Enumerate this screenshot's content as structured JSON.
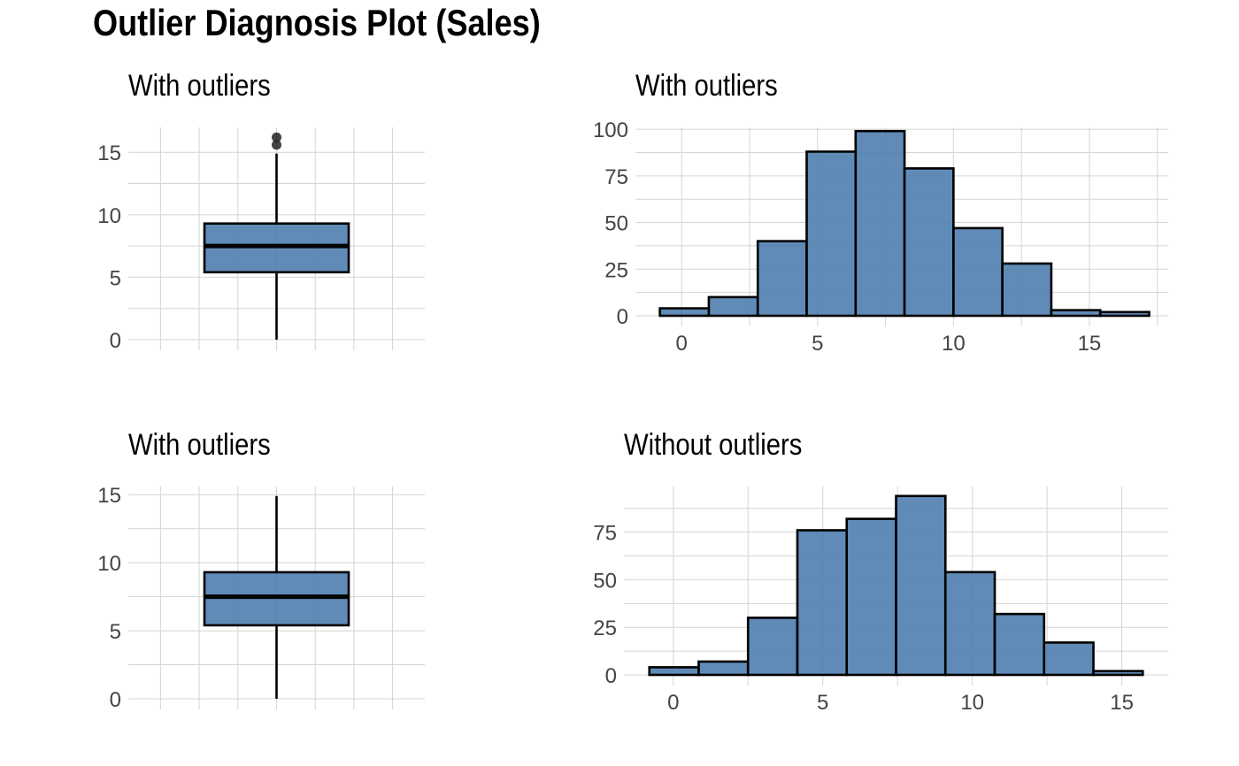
{
  "title": "Outlier Diagnosis Plot (Sales)",
  "chart_data": [
    {
      "type": "box",
      "title": "With outliers",
      "ylim": [
        0,
        17
      ],
      "yticks": [
        0,
        5,
        10,
        15
      ],
      "stats": {
        "min": 0,
        "q1": 5.4,
        "median": 7.5,
        "q3": 9.3,
        "max": 14.9
      },
      "outliers": [
        15.6,
        16.2
      ],
      "grid": true
    },
    {
      "type": "bar",
      "title": "With outliers",
      "bin_edges": [
        -0.8,
        1.0,
        2.8,
        4.6,
        6.4,
        8.2,
        10.0,
        11.8,
        13.6,
        15.4,
        17.2
      ],
      "values": [
        4,
        10,
        40,
        88,
        99,
        79,
        47,
        28,
        3,
        2
      ],
      "xticks": [
        0,
        5,
        10,
        15
      ],
      "yticks": [
        0,
        25,
        50,
        75,
        100
      ],
      "xlim": [
        -1.7,
        17.9
      ],
      "ylim": [
        0,
        101
      ],
      "grid": true
    },
    {
      "type": "box",
      "title": "With outliers",
      "ylim": [
        0,
        15.6
      ],
      "yticks": [
        0,
        5,
        10,
        15
      ],
      "stats": {
        "min": 0,
        "q1": 5.4,
        "median": 7.5,
        "q3": 9.3,
        "max": 14.9
      },
      "outliers": [],
      "grid": true
    },
    {
      "type": "bar",
      "title": "Without outliers",
      "bin_edges": [
        -0.8,
        0.85,
        2.5,
        4.15,
        5.8,
        7.45,
        9.1,
        10.75,
        12.4,
        14.05,
        15.7
      ],
      "values": [
        4,
        7,
        30,
        76,
        82,
        94,
        54,
        32,
        17,
        2
      ],
      "xticks": [
        0,
        5,
        10,
        15
      ],
      "yticks": [
        0,
        25,
        50,
        75
      ],
      "xlim": [
        -1.65,
        16.55
      ],
      "ylim": [
        0,
        99
      ],
      "grid": true
    }
  ]
}
